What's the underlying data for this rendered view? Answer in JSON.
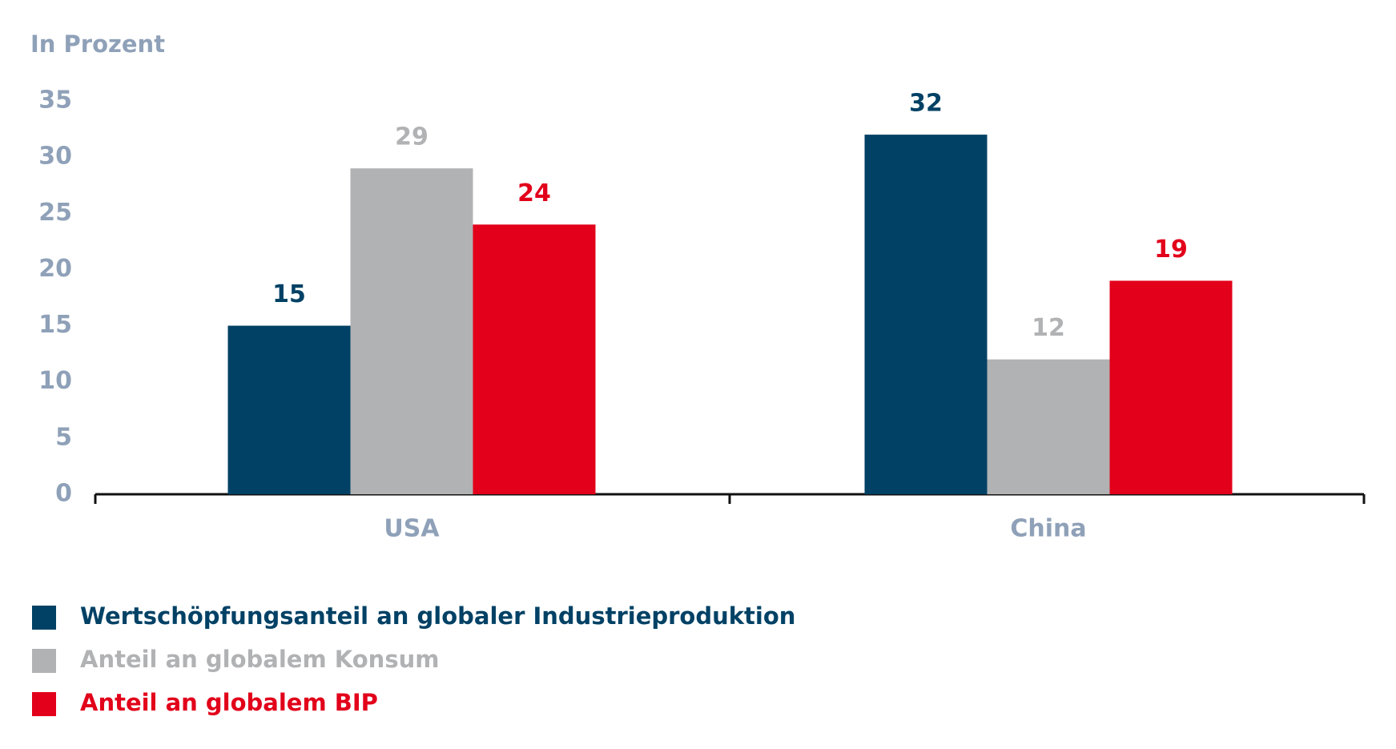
{
  "chart_data": {
    "type": "bar",
    "y_label": "In Prozent",
    "categories": [
      "USA",
      "China"
    ],
    "series": [
      {
        "name": "Wertschöpfungsanteil an globaler Industrieproduktion",
        "color": "#004165",
        "values": [
          15,
          32
        ]
      },
      {
        "name": "Anteil an globalem Konsum",
        "color": "#b1b2b4",
        "values": [
          29,
          12
        ]
      },
      {
        "name": "Anteil an globalem BIP",
        "color": "#e2001a",
        "values": [
          24,
          19
        ]
      }
    ],
    "ylim": [
      0,
      35
    ],
    "yticks": [
      0,
      5,
      10,
      15,
      20,
      25,
      30,
      35
    ],
    "grid": false,
    "legend": "bottom-left"
  }
}
